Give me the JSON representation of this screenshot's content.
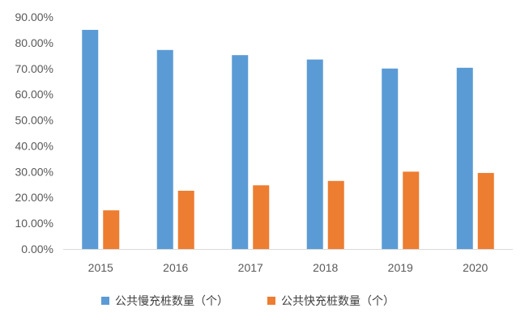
{
  "chart_data": {
    "type": "bar",
    "title": "",
    "xlabel": "",
    "ylabel": "",
    "categories": [
      "2015",
      "2016",
      "2017",
      "2018",
      "2019",
      "2020"
    ],
    "series": [
      {
        "name": "公共慢充桩数量（个）",
        "color": "#5B9BD5",
        "values": [
          85.0,
          77.2,
          75.2,
          73.5,
          70.0,
          70.3
        ]
      },
      {
        "name": "公共快充桩数量（个）",
        "color": "#ED7D31",
        "values": [
          15.0,
          22.6,
          24.7,
          26.4,
          30.0,
          29.5
        ]
      }
    ],
    "ylim": [
      0,
      90
    ],
    "yticks": [
      "0.00%",
      "10.00%",
      "20.00%",
      "30.00%",
      "40.00%",
      "50.00%",
      "60.00%",
      "70.00%",
      "80.00%",
      "90.00%"
    ],
    "grid": false,
    "legend_position": "bottom"
  }
}
